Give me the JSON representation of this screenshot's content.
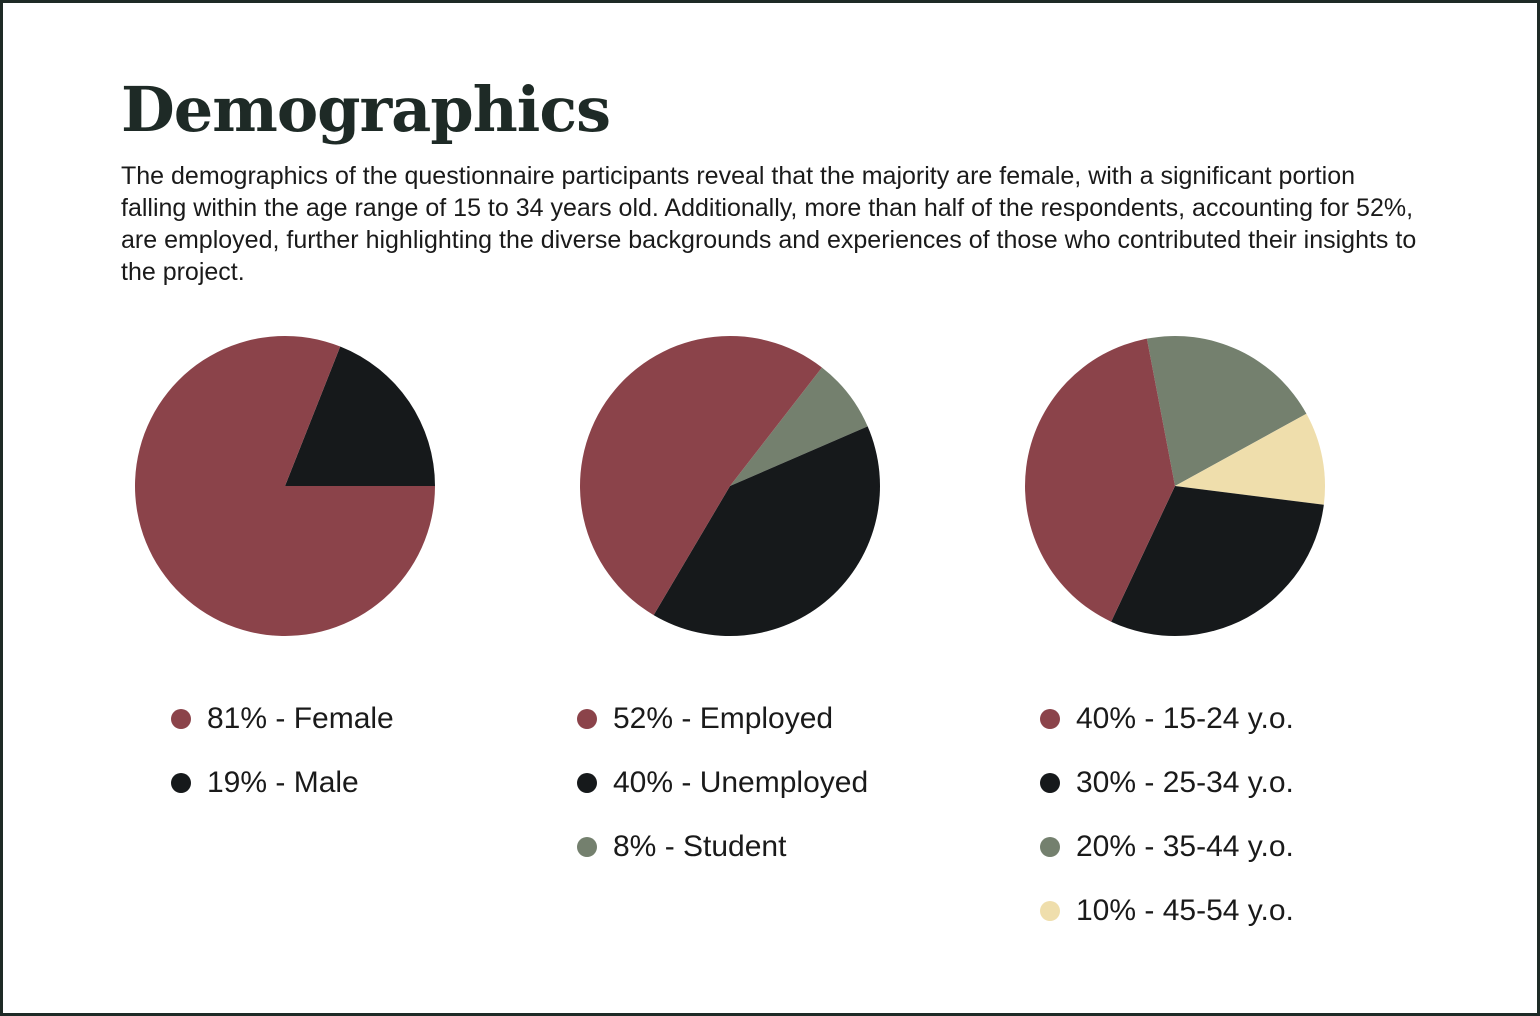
{
  "page": {
    "title": "Demographics",
    "description": "The demographics of the questionnaire participants reveal that the majority are female, with a significant portion falling within the age range of 15 to 34 years old. Additionally, more than half of the respondents, accounting for 52%, are employed, further highlighting the diverse backgrounds and experiences of those who contributed their insights to the project."
  },
  "colors": {
    "maroon": "#8b434a",
    "black": "#16191b",
    "sage": "#74806e",
    "cream": "#efdeac",
    "title": "#1e2a26"
  },
  "chart_data": [
    {
      "type": "pie",
      "title": "",
      "slices": [
        {
          "value": 81,
          "label": "81% - Female",
          "color": "#8b434a"
        },
        {
          "value": 19,
          "label": "19% - Male",
          "color": "#16191b"
        }
      ]
    },
    {
      "type": "pie",
      "title": "",
      "slices": [
        {
          "value": 52,
          "label": "52% - Employed",
          "color": "#8b434a"
        },
        {
          "value": 40,
          "label": "40% - Unemployed",
          "color": "#16191b"
        },
        {
          "value": 8,
          "label": "8% - Student",
          "color": "#74806e"
        }
      ]
    },
    {
      "type": "pie",
      "title": "",
      "slices": [
        {
          "value": 40,
          "label": "40% - 15-24 y.o.",
          "color": "#8b434a"
        },
        {
          "value": 30,
          "label": "30% - 25-34 y.o.",
          "color": "#16191b"
        },
        {
          "value": 20,
          "label": "20% - 35-44 y.o.",
          "color": "#74806e"
        },
        {
          "value": 10,
          "label": "10% - 45-54 y.o.",
          "color": "#efdeac"
        }
      ]
    }
  ]
}
